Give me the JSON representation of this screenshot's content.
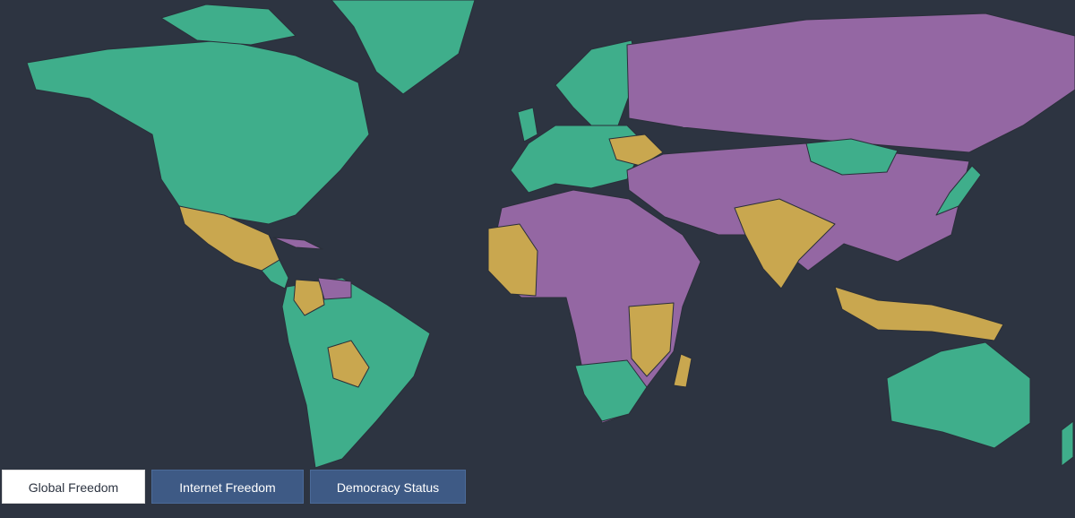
{
  "tabs": [
    "Global Freedom",
    "Internet Freedom",
    "Democracy Status"
  ],
  "active_tab": 0
}
